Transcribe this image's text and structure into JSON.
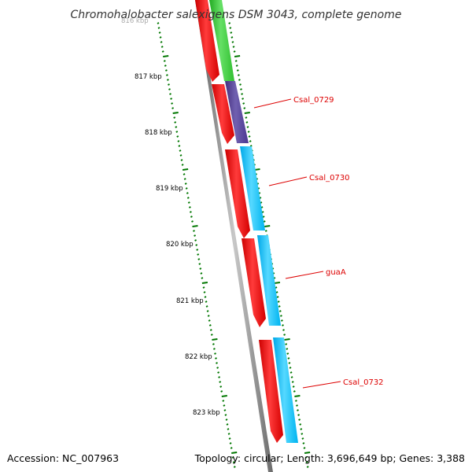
{
  "title": "Chromohalobacter salexigens DSM 3043, complete genome",
  "accession": "Accession: NC_007963",
  "summary": "Topology: circular; Length: 3,696,649 bp; Genes: 3,388",
  "kbp_labels": [
    "816 kbp",
    "817 kbp",
    "818 kbp",
    "819 kbp",
    "820 kbp",
    "821 kbp",
    "822 kbp",
    "823 kbp"
  ],
  "gene_labels": [
    "Csal_0729",
    "Csal_0730",
    "guaA",
    "Csal_0732"
  ],
  "colors": {
    "backbone": "#8a8a8a",
    "forward_strand_gene": "#ff0000",
    "cds_green": "#33cc33",
    "cds_purple": "#553c99",
    "cds_cyan": "#00bfff",
    "tick": "#007700",
    "label": "#dd0000"
  }
}
